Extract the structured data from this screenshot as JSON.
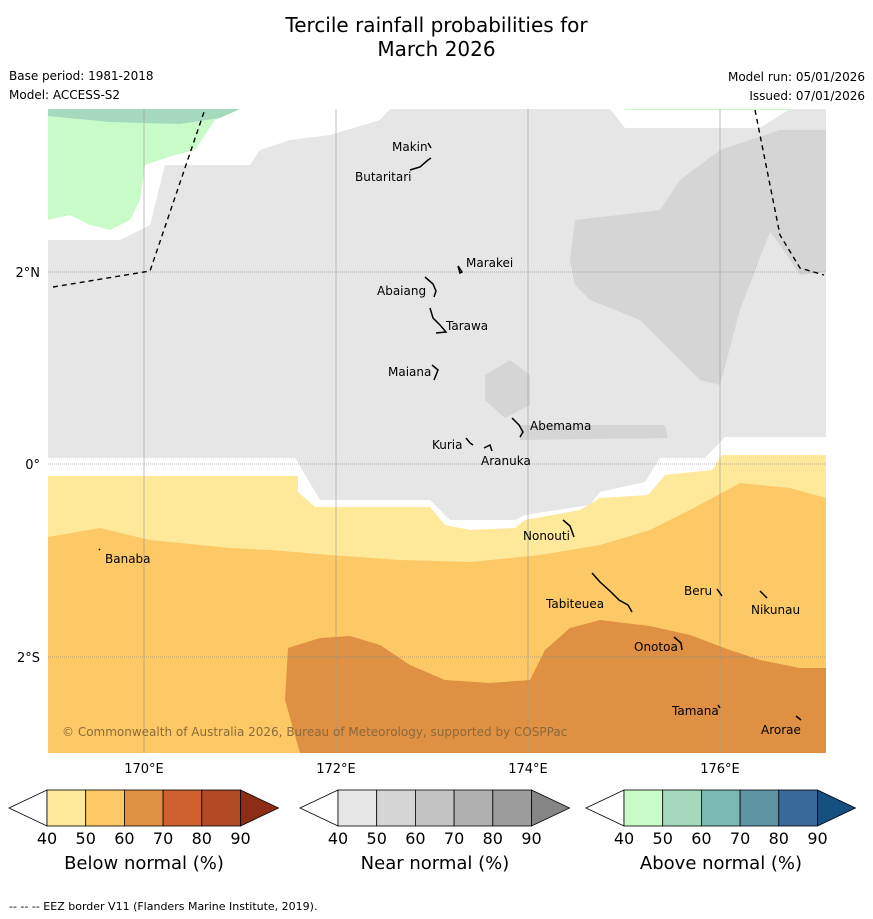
{
  "title": {
    "line1": "Tercile rainfall probabilities for",
    "line2": "March 2026"
  },
  "meta": {
    "base_period": "Base period: 1981-2018",
    "model": "Model: ACCESS-S2",
    "model_run": "Model run: 05/01/2026",
    "issued": "Issued: 07/01/2026"
  },
  "map": {
    "lat_labels": [
      "2°N",
      "0°",
      "2°S"
    ],
    "lon_labels": [
      "170°E",
      "172°E",
      "174°E",
      "176°E"
    ],
    "islands": [
      {
        "name": "Makin"
      },
      {
        "name": "Butaritari"
      },
      {
        "name": "Marakei"
      },
      {
        "name": "Abaiang"
      },
      {
        "name": "Tarawa"
      },
      {
        "name": "Maiana"
      },
      {
        "name": "Abemama"
      },
      {
        "name": "Kuria"
      },
      {
        "name": "Aranuka"
      },
      {
        "name": "Nonouti"
      },
      {
        "name": "Banaba"
      },
      {
        "name": "Beru"
      },
      {
        "name": "Tabiteuea"
      },
      {
        "name": "Nikunau"
      },
      {
        "name": "Onotoa"
      },
      {
        "name": "Tamana"
      },
      {
        "name": "Arorae"
      }
    ],
    "copyright": "© Commonwealth of Australia 2026, Bureau of Meteorology, supported by COSPPac"
  },
  "colorbars": [
    {
      "title": "Below normal (%)",
      "ticks": [
        "40",
        "50",
        "60",
        "70",
        "80",
        "90"
      ],
      "colors": [
        "#ffffff",
        "#fee89a",
        "#fdc966",
        "#e09042",
        "#cf6030",
        "#b14a25",
        "#8c2d15"
      ]
    },
    {
      "title": "Near normal (%)",
      "ticks": [
        "40",
        "50",
        "60",
        "70",
        "80",
        "90"
      ],
      "colors": [
        "#ffffff",
        "#e6e6e6",
        "#d5d5d5",
        "#c4c4c4",
        "#b0b0b0",
        "#9c9c9c",
        "#858585"
      ]
    },
    {
      "title": "Above normal (%)",
      "ticks": [
        "40",
        "50",
        "60",
        "70",
        "80",
        "90"
      ],
      "colors": [
        "#ffffff",
        "#c9fbc9",
        "#a4d9bd",
        "#7ab9b2",
        "#5c94a3",
        "#386a9b",
        "#164f82"
      ]
    }
  ],
  "footer": "--  --  -- EEZ border V11 (Flanders Marine Institute, 2019)."
}
